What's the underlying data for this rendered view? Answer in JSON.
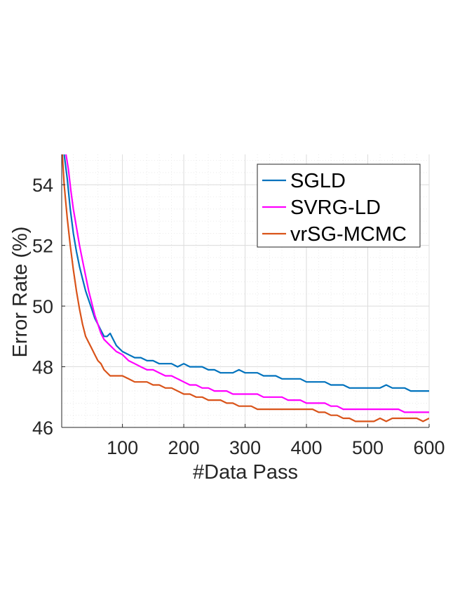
{
  "chart_data": {
    "type": "line",
    "title": "",
    "xlabel": "#Data Pass",
    "ylabel": "Error Rate (%)",
    "xlim": [
      1,
      600
    ],
    "ylim": [
      46,
      55
    ],
    "xticks": [
      100,
      200,
      300,
      400,
      500,
      600
    ],
    "yticks": [
      46,
      48,
      50,
      52,
      54
    ],
    "xtick_labels": [
      "100",
      "200",
      "300",
      "400",
      "500",
      "600"
    ],
    "ytick_labels": [
      "46",
      "48",
      "50",
      "52",
      "54"
    ],
    "grid": true,
    "minor_grid": true,
    "legend_position": "top-right",
    "series": [
      {
        "name": "SGLD",
        "color": "#0072BD",
        "points": [
          [
            5,
            55.0
          ],
          [
            10,
            54.2
          ],
          [
            15,
            53.2
          ],
          [
            20,
            52.4
          ],
          [
            25,
            51.8
          ],
          [
            30,
            51.3
          ],
          [
            35,
            50.9
          ],
          [
            40,
            50.5
          ],
          [
            45,
            50.2
          ],
          [
            50,
            49.9
          ],
          [
            55,
            49.6
          ],
          [
            60,
            49.4
          ],
          [
            65,
            49.2
          ],
          [
            70,
            49.0
          ],
          [
            75,
            49.0
          ],
          [
            80,
            49.1
          ],
          [
            85,
            48.9
          ],
          [
            90,
            48.7
          ],
          [
            95,
            48.6
          ],
          [
            100,
            48.5
          ],
          [
            110,
            48.4
          ],
          [
            120,
            48.3
          ],
          [
            130,
            48.3
          ],
          [
            140,
            48.2
          ],
          [
            150,
            48.2
          ],
          [
            160,
            48.1
          ],
          [
            170,
            48.1
          ],
          [
            180,
            48.1
          ],
          [
            190,
            48.0
          ],
          [
            200,
            48.1
          ],
          [
            210,
            48.0
          ],
          [
            220,
            48.0
          ],
          [
            230,
            48.0
          ],
          [
            240,
            47.9
          ],
          [
            250,
            47.9
          ],
          [
            260,
            47.8
          ],
          [
            270,
            47.8
          ],
          [
            280,
            47.8
          ],
          [
            290,
            47.9
          ],
          [
            300,
            47.8
          ],
          [
            310,
            47.8
          ],
          [
            320,
            47.8
          ],
          [
            330,
            47.7
          ],
          [
            340,
            47.7
          ],
          [
            350,
            47.7
          ],
          [
            360,
            47.6
          ],
          [
            370,
            47.6
          ],
          [
            380,
            47.6
          ],
          [
            390,
            47.6
          ],
          [
            400,
            47.5
          ],
          [
            410,
            47.5
          ],
          [
            420,
            47.5
          ],
          [
            430,
            47.5
          ],
          [
            440,
            47.4
          ],
          [
            450,
            47.4
          ],
          [
            460,
            47.4
          ],
          [
            470,
            47.3
          ],
          [
            480,
            47.3
          ],
          [
            490,
            47.3
          ],
          [
            500,
            47.3
          ],
          [
            510,
            47.3
          ],
          [
            520,
            47.3
          ],
          [
            530,
            47.4
          ],
          [
            540,
            47.3
          ],
          [
            550,
            47.3
          ],
          [
            560,
            47.3
          ],
          [
            570,
            47.2
          ],
          [
            580,
            47.2
          ],
          [
            590,
            47.2
          ],
          [
            600,
            47.2
          ]
        ]
      },
      {
        "name": "SVRG-LD",
        "color": "#FF00FF",
        "points": [
          [
            8,
            55.0
          ],
          [
            12,
            54.5
          ],
          [
            16,
            53.8
          ],
          [
            20,
            53.2
          ],
          [
            25,
            52.6
          ],
          [
            30,
            52.0
          ],
          [
            35,
            51.5
          ],
          [
            40,
            51.0
          ],
          [
            45,
            50.5
          ],
          [
            50,
            50.1
          ],
          [
            55,
            49.7
          ],
          [
            60,
            49.4
          ],
          [
            65,
            49.1
          ],
          [
            70,
            48.9
          ],
          [
            80,
            48.7
          ],
          [
            90,
            48.5
          ],
          [
            100,
            48.4
          ],
          [
            110,
            48.2
          ],
          [
            120,
            48.1
          ],
          [
            130,
            48.0
          ],
          [
            140,
            47.9
          ],
          [
            150,
            47.9
          ],
          [
            160,
            47.8
          ],
          [
            170,
            47.7
          ],
          [
            180,
            47.7
          ],
          [
            190,
            47.6
          ],
          [
            200,
            47.5
          ],
          [
            210,
            47.4
          ],
          [
            220,
            47.4
          ],
          [
            230,
            47.3
          ],
          [
            240,
            47.3
          ],
          [
            250,
            47.2
          ],
          [
            260,
            47.2
          ],
          [
            270,
            47.2
          ],
          [
            280,
            47.1
          ],
          [
            290,
            47.1
          ],
          [
            300,
            47.1
          ],
          [
            310,
            47.1
          ],
          [
            320,
            47.1
          ],
          [
            330,
            47.0
          ],
          [
            340,
            47.0
          ],
          [
            350,
            47.0
          ],
          [
            360,
            47.0
          ],
          [
            370,
            46.9
          ],
          [
            380,
            46.9
          ],
          [
            390,
            46.9
          ],
          [
            400,
            46.8
          ],
          [
            410,
            46.8
          ],
          [
            420,
            46.8
          ],
          [
            430,
            46.8
          ],
          [
            440,
            46.7
          ],
          [
            450,
            46.7
          ],
          [
            460,
            46.6
          ],
          [
            470,
            46.6
          ],
          [
            480,
            46.6
          ],
          [
            490,
            46.6
          ],
          [
            500,
            46.6
          ],
          [
            510,
            46.6
          ],
          [
            520,
            46.6
          ],
          [
            530,
            46.6
          ],
          [
            540,
            46.6
          ],
          [
            550,
            46.6
          ],
          [
            560,
            46.5
          ],
          [
            570,
            46.5
          ],
          [
            580,
            46.5
          ],
          [
            590,
            46.5
          ],
          [
            600,
            46.5
          ]
        ]
      },
      {
        "name": "vrSG-MCMC",
        "color": "#D95319",
        "points": [
          [
            2,
            55.0
          ],
          [
            5,
            54.0
          ],
          [
            10,
            52.9
          ],
          [
            15,
            52.0
          ],
          [
            20,
            51.2
          ],
          [
            25,
            50.5
          ],
          [
            30,
            49.9
          ],
          [
            35,
            49.4
          ],
          [
            40,
            49.0
          ],
          [
            45,
            48.8
          ],
          [
            50,
            48.6
          ],
          [
            55,
            48.4
          ],
          [
            60,
            48.2
          ],
          [
            65,
            48.1
          ],
          [
            70,
            47.9
          ],
          [
            80,
            47.7
          ],
          [
            90,
            47.7
          ],
          [
            100,
            47.7
          ],
          [
            110,
            47.6
          ],
          [
            120,
            47.5
          ],
          [
            130,
            47.5
          ],
          [
            140,
            47.5
          ],
          [
            150,
            47.4
          ],
          [
            160,
            47.4
          ],
          [
            170,
            47.3
          ],
          [
            180,
            47.3
          ],
          [
            190,
            47.2
          ],
          [
            200,
            47.1
          ],
          [
            210,
            47.1
          ],
          [
            220,
            47.0
          ],
          [
            230,
            47.0
          ],
          [
            240,
            46.9
          ],
          [
            250,
            46.9
          ],
          [
            260,
            46.9
          ],
          [
            270,
            46.8
          ],
          [
            280,
            46.8
          ],
          [
            290,
            46.7
          ],
          [
            300,
            46.7
          ],
          [
            310,
            46.7
          ],
          [
            320,
            46.6
          ],
          [
            330,
            46.6
          ],
          [
            340,
            46.6
          ],
          [
            350,
            46.6
          ],
          [
            360,
            46.6
          ],
          [
            370,
            46.6
          ],
          [
            380,
            46.6
          ],
          [
            390,
            46.6
          ],
          [
            400,
            46.6
          ],
          [
            410,
            46.6
          ],
          [
            420,
            46.5
          ],
          [
            430,
            46.5
          ],
          [
            440,
            46.4
          ],
          [
            450,
            46.4
          ],
          [
            460,
            46.3
          ],
          [
            470,
            46.3
          ],
          [
            480,
            46.2
          ],
          [
            490,
            46.2
          ],
          [
            500,
            46.2
          ],
          [
            510,
            46.2
          ],
          [
            520,
            46.3
          ],
          [
            530,
            46.2
          ],
          [
            540,
            46.3
          ],
          [
            550,
            46.3
          ],
          [
            560,
            46.3
          ],
          [
            570,
            46.3
          ],
          [
            580,
            46.3
          ],
          [
            590,
            46.2
          ],
          [
            600,
            46.3
          ]
        ]
      }
    ]
  }
}
